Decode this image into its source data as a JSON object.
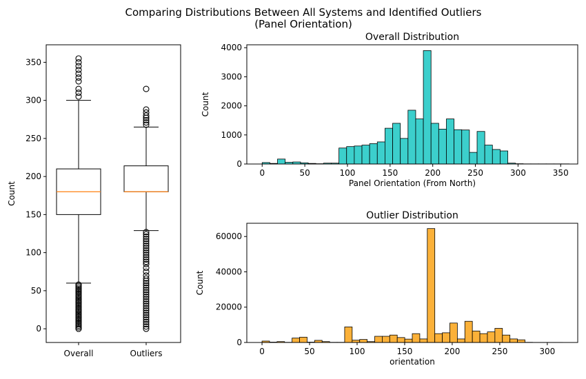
{
  "figure": {
    "suptitle_line1": "Comparing Distributions Between All Systems and Identified Outliers",
    "suptitle_line2": "(Panel Orientation)"
  },
  "chart_data": [
    {
      "type": "box",
      "ylabel": "Count",
      "ylim": [
        -18,
        373
      ],
      "yticks": [
        0,
        50,
        100,
        150,
        200,
        250,
        300,
        350
      ],
      "categories": [
        "Overall",
        "Outliers"
      ],
      "boxes": [
        {
          "name": "Overall",
          "q1": 150,
          "median": 180,
          "q3": 210,
          "whisker_low": 60,
          "whisker_high": 300,
          "fliers": [
            0,
            2,
            4,
            6,
            8,
            10,
            12,
            14,
            16,
            18,
            20,
            22,
            24,
            26,
            28,
            30,
            32,
            34,
            36,
            38,
            40,
            42,
            44,
            46,
            48,
            50,
            52,
            54,
            56,
            58,
            305,
            310,
            315,
            325,
            330,
            335,
            340,
            345,
            350,
            355
          ]
        },
        {
          "name": "Outliers",
          "q1": 180,
          "median": 180,
          "q3": 214,
          "whisker_low": 129,
          "whisker_high": 265,
          "fliers": [
            0,
            3,
            6,
            9,
            12,
            15,
            18,
            21,
            24,
            27,
            30,
            33,
            36,
            39,
            42,
            45,
            48,
            51,
            54,
            57,
            60,
            63,
            66,
            70,
            75,
            80,
            85,
            88,
            91,
            94,
            97,
            100,
            103,
            106,
            109,
            112,
            115,
            118,
            121,
            124,
            127,
            268,
            271,
            274,
            277,
            280,
            284,
            288,
            315
          ]
        }
      ],
      "colors": {
        "median": "#ff7f0e",
        "box": "#000000"
      }
    },
    {
      "type": "histogram",
      "title": "Overall Distribution",
      "xlabel": "Panel Orientation (From North)",
      "ylabel": "Count",
      "xlim": [
        -18,
        370
      ],
      "ylim": [
        0,
        4100
      ],
      "xticks": [
        0,
        50,
        100,
        150,
        200,
        250,
        300,
        350
      ],
      "yticks": [
        0,
        1000,
        2000,
        3000,
        4000
      ],
      "bin_width": 9,
      "bin_start": 0,
      "values": [
        50,
        20,
        170,
        60,
        70,
        40,
        20,
        10,
        30,
        30,
        550,
        600,
        620,
        650,
        700,
        760,
        1230,
        1400,
        880,
        1850,
        1550,
        3900,
        1400,
        1200,
        1550,
        1180,
        1170,
        400,
        1120,
        650,
        500,
        450,
        30,
        10,
        5,
        5,
        5,
        5,
        5,
        5
      ],
      "colors": {
        "fill": "#3ccfcc",
        "edge": "#000000"
      }
    },
    {
      "type": "histogram",
      "title": "Outlier Distribution",
      "xlabel": "orientation",
      "ylabel": "Count",
      "xlim": [
        -16,
        332
      ],
      "ylim": [
        0,
        67500
      ],
      "xticks": [
        0,
        50,
        100,
        150,
        200,
        250,
        300
      ],
      "yticks": [
        0,
        20000,
        40000,
        60000
      ],
      "bin_width": 7.9,
      "bin_start": 0,
      "values": [
        800,
        200,
        500,
        100,
        2500,
        3000,
        200,
        1200,
        500,
        100,
        100,
        8800,
        1300,
        1700,
        500,
        3500,
        3500,
        4200,
        2800,
        1900,
        5000,
        2000,
        64500,
        5000,
        5500,
        11000,
        2000,
        12000,
        6500,
        5000,
        6000,
        8000,
        4200,
        2000,
        1500,
        100,
        50,
        50,
        50,
        50
      ],
      "colors": {
        "fill": "#fbb139",
        "edge": "#000000"
      }
    }
  ]
}
